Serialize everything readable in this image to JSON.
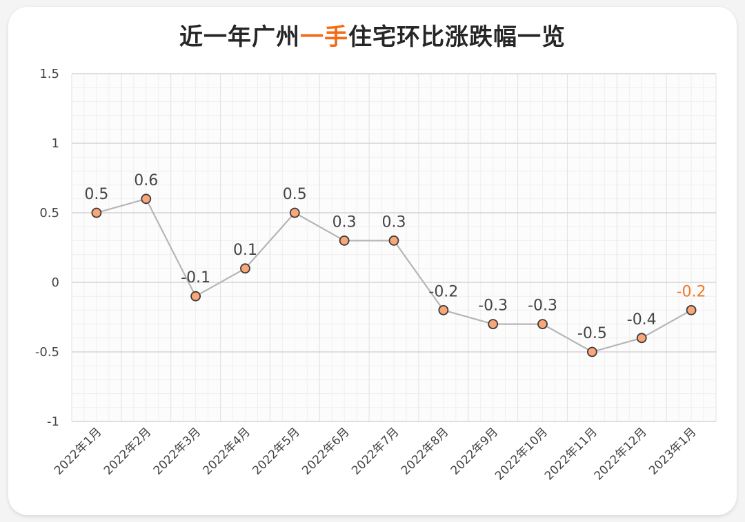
{
  "title": {
    "before": "近一年广州",
    "highlight": "一手",
    "after": "住宅环比涨跌幅一览"
  },
  "colors": {
    "highlight": "#f56a14",
    "line": "#b5b5b5",
    "marker_fill": "#f9a678",
    "marker_stroke": "#3a3a3a",
    "last_label": "#f07a26"
  },
  "chart_data": {
    "type": "line",
    "title": "近一年广州一手住宅环比涨跌幅一览",
    "categories": [
      "2022年1月",
      "2022年2月",
      "2022年3月",
      "2022年4月",
      "2022年5月",
      "2022年6月",
      "2022年7月",
      "2022年8月",
      "2022年9月",
      "2022年10月",
      "2022年11月",
      "2022年12月",
      "2023年1月"
    ],
    "values": [
      0.5,
      0.6,
      -0.1,
      0.1,
      0.5,
      0.3,
      0.3,
      -0.2,
      -0.3,
      -0.3,
      -0.5,
      -0.4,
      -0.2
    ],
    "ylim": [
      -1,
      1.5
    ],
    "yticks": [
      "1.5",
      "1",
      "0.5",
      "0",
      "-0.5",
      "-1"
    ],
    "xlabel": "",
    "ylabel": "",
    "grid": true,
    "legend": "none"
  }
}
